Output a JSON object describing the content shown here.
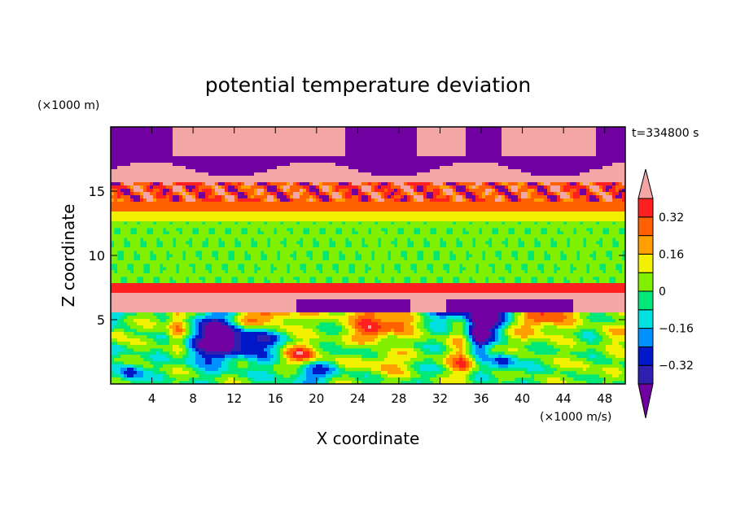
{
  "chart_data": {
    "type": "heatmap",
    "title": "potential temperature deviation",
    "xlabel": "X coordinate",
    "ylabel": "Z coordinate",
    "x_unit": "(×1000 m/s)",
    "y_unit": "(×1000 m)",
    "time_label": "t=334800 s",
    "xlim": [
      0,
      50
    ],
    "ylim": [
      0,
      20
    ],
    "x_ticks": [
      4,
      8,
      12,
      16,
      20,
      24,
      28,
      32,
      36,
      40,
      44,
      48
    ],
    "y_ticks": [
      5,
      10,
      15
    ],
    "colorbar": {
      "levels": [
        -0.4,
        -0.32,
        -0.24,
        -0.16,
        -0.08,
        0,
        0.08,
        0.16,
        0.24,
        0.32,
        0.4
      ],
      "tick_labels": [
        "0.32",
        "0.16",
        "0",
        "−0.16",
        "−0.32"
      ],
      "tick_values": [
        0.32,
        0.16,
        0,
        -0.16,
        -0.32
      ],
      "colors": [
        "#7000a0",
        "#3020b0",
        "#0018c8",
        "#0090ff",
        "#00e0e0",
        "#00e878",
        "#80f000",
        "#f0f000",
        "#ffa000",
        "#ff6000",
        "#ff2020",
        "#f4a6a6"
      ],
      "extend": "both"
    }
  }
}
